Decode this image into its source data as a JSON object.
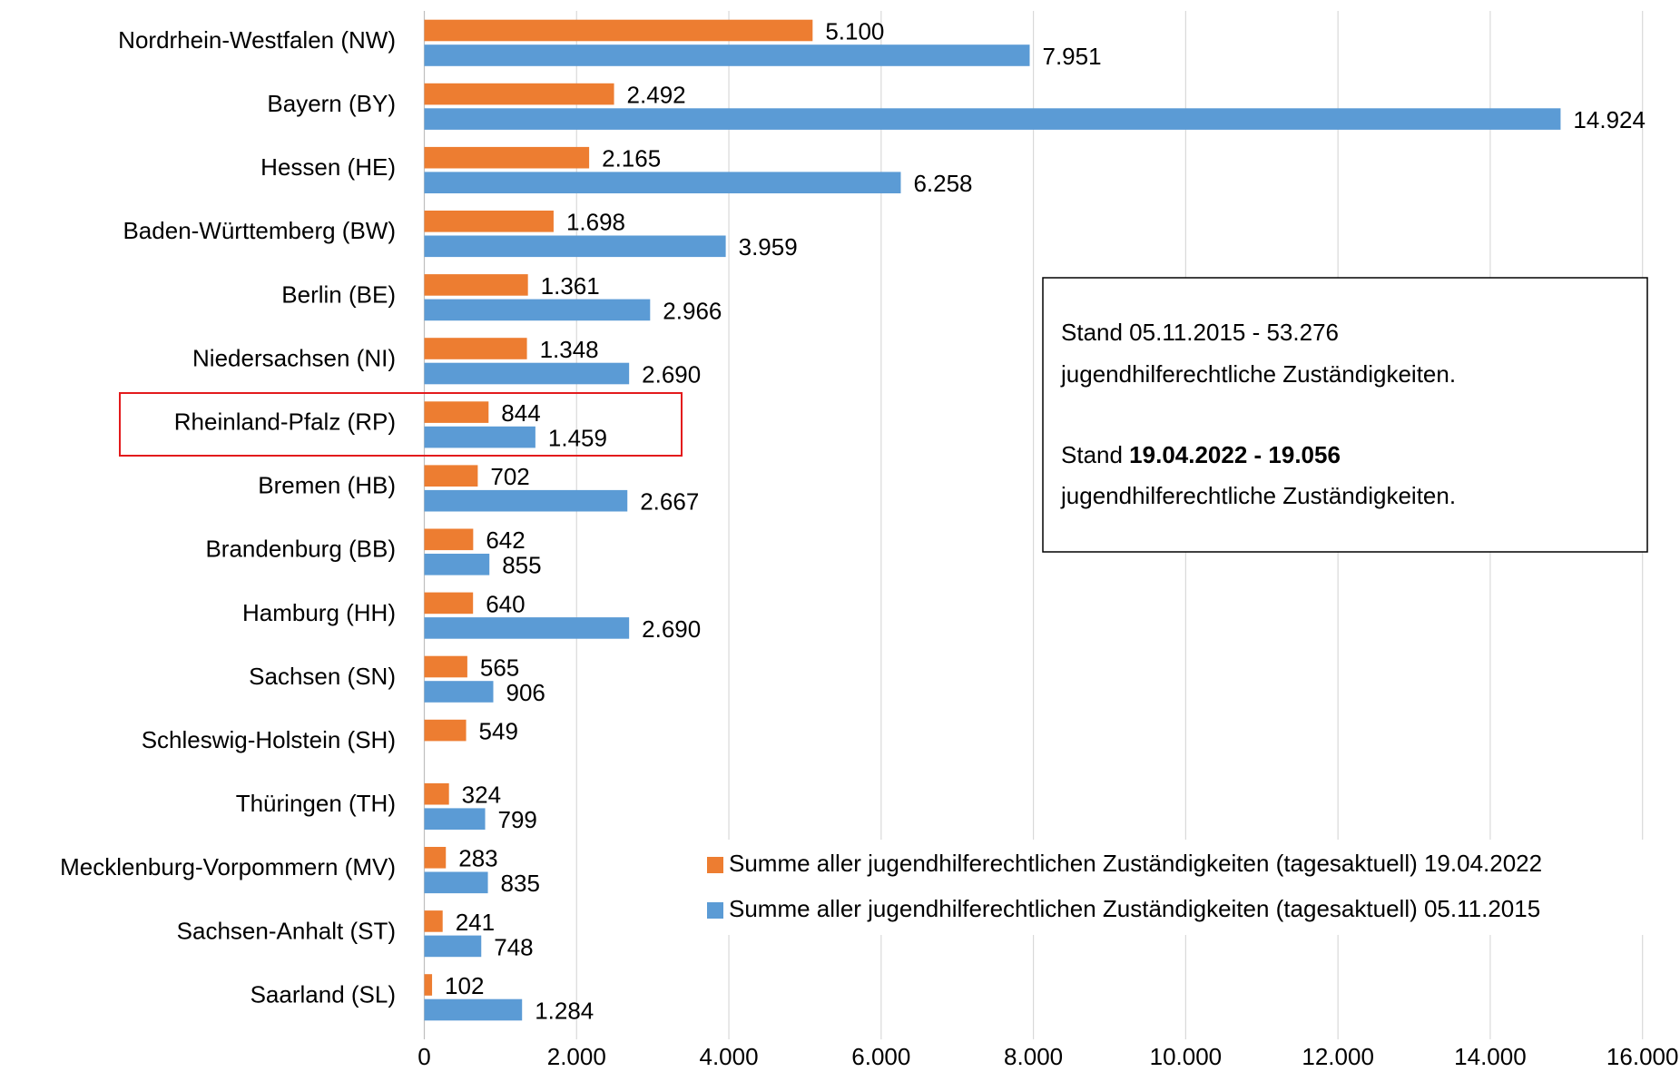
{
  "chart_data": {
    "type": "bar",
    "orientation": "horizontal",
    "categories": [
      "Nordrhein-Westfalen (NW)",
      "Bayern (BY)",
      "Hessen (HE)",
      "Baden-Württemberg (BW)",
      "Berlin (BE)",
      "Niedersachsen (NI)",
      "Rheinland-Pfalz (RP)",
      "Bremen (HB)",
      "Brandenburg (BB)",
      "Hamburg (HH)",
      "Sachsen (SN)",
      "Schleswig-Holstein (SH)",
      "Thüringen (TH)",
      "Mecklenburg-Vorpommern (MV)",
      "Sachsen-Anhalt (ST)",
      "Saarland (SL)"
    ],
    "series": [
      {
        "name": "Summe aller jugendhilferechtlichen Zuständigkeiten (tagesaktuell) 19.04.2022",
        "color": "#ED7D31",
        "values": [
          5100,
          2492,
          2165,
          1698,
          1361,
          1348,
          844,
          702,
          642,
          640,
          565,
          549,
          324,
          283,
          241,
          102
        ],
        "value_labels": [
          "5.100",
          "2.492",
          "2.165",
          "1.698",
          "1.361",
          "1.348",
          "844",
          "702",
          "642",
          "640",
          "565",
          "549",
          "324",
          "283",
          "241",
          "102"
        ]
      },
      {
        "name": "Summe aller jugendhilferechtlichen Zuständigkeiten (tagesaktuell) 05.11.2015",
        "color": "#5B9BD5",
        "values": [
          7951,
          14924,
          6258,
          3959,
          2966,
          2690,
          1459,
          2667,
          855,
          2690,
          906,
          null,
          799,
          835,
          748,
          1284
        ],
        "value_labels": [
          "7.951",
          "14.924",
          "6.258",
          "3.959",
          "2.966",
          "2.690",
          "1.459",
          "2.667",
          "855",
          "2.690",
          "906",
          null,
          "799",
          "835",
          "748",
          "1.284"
        ]
      }
    ],
    "xlim": [
      0,
      16000
    ],
    "xticks": [
      0,
      {
        "value": 2000,
        "label": "2.000"
      },
      {
        "value": 4000,
        "label": "4.000"
      },
      {
        "value": 6000,
        "label": "6.000"
      },
      {
        "value": 8000,
        "label": "8.000"
      },
      {
        "value": 10000,
        "label": "10.000"
      },
      {
        "value": 12000,
        "label": "12.000"
      },
      {
        "value": 14000,
        "label": "14.000"
      },
      {
        "value": 16000,
        "label": "16.000"
      }
    ],
    "grid": true,
    "annotation": [
      [
        {
          "text": "Stand 05.11.2015 - 53.276"
        }
      ],
      [
        {
          "text": "jugendhilferechtliche Zuständigkeiten."
        }
      ],
      [
        {
          "text": "Stand "
        },
        {
          "text": "19.04.2022 - 19.056",
          "bold": true
        }
      ],
      [
        {
          "text": "jugendhilferechtliche Zuständigkeiten."
        }
      ]
    ]
  }
}
